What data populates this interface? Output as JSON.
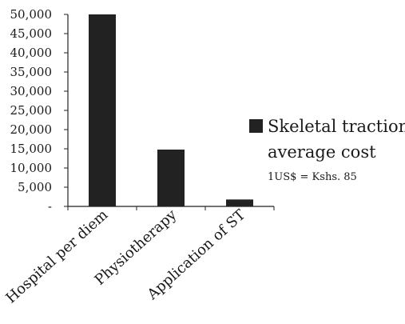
{
  "chart_data": {
    "type": "bar",
    "title": "",
    "xlabel": "",
    "ylabel": "",
    "categories": [
      "Hospital per diem",
      "Physiotherapy",
      "Application of ST"
    ],
    "series": [
      {
        "name": "Skeletal traction average cost",
        "values": [
          50000,
          14800,
          1800
        ]
      }
    ],
    "ylim": [
      0,
      50000
    ],
    "yticks": [
      0,
      5000,
      10000,
      15000,
      20000,
      25000,
      30000,
      35000,
      40000,
      45000,
      50000
    ],
    "ytick_labels": [
      "-",
      "5,000",
      "10,000",
      "15,000",
      "20,000",
      "25,000",
      "30,000",
      "35,000",
      "40,000",
      "45,000",
      "50,000"
    ],
    "grid": false,
    "legend": {
      "placement": "right",
      "label_line1": "Skeletal traction",
      "label_line2": "average cost",
      "note": "1US$ = Kshs. 85"
    },
    "bar_color": "#222222"
  }
}
